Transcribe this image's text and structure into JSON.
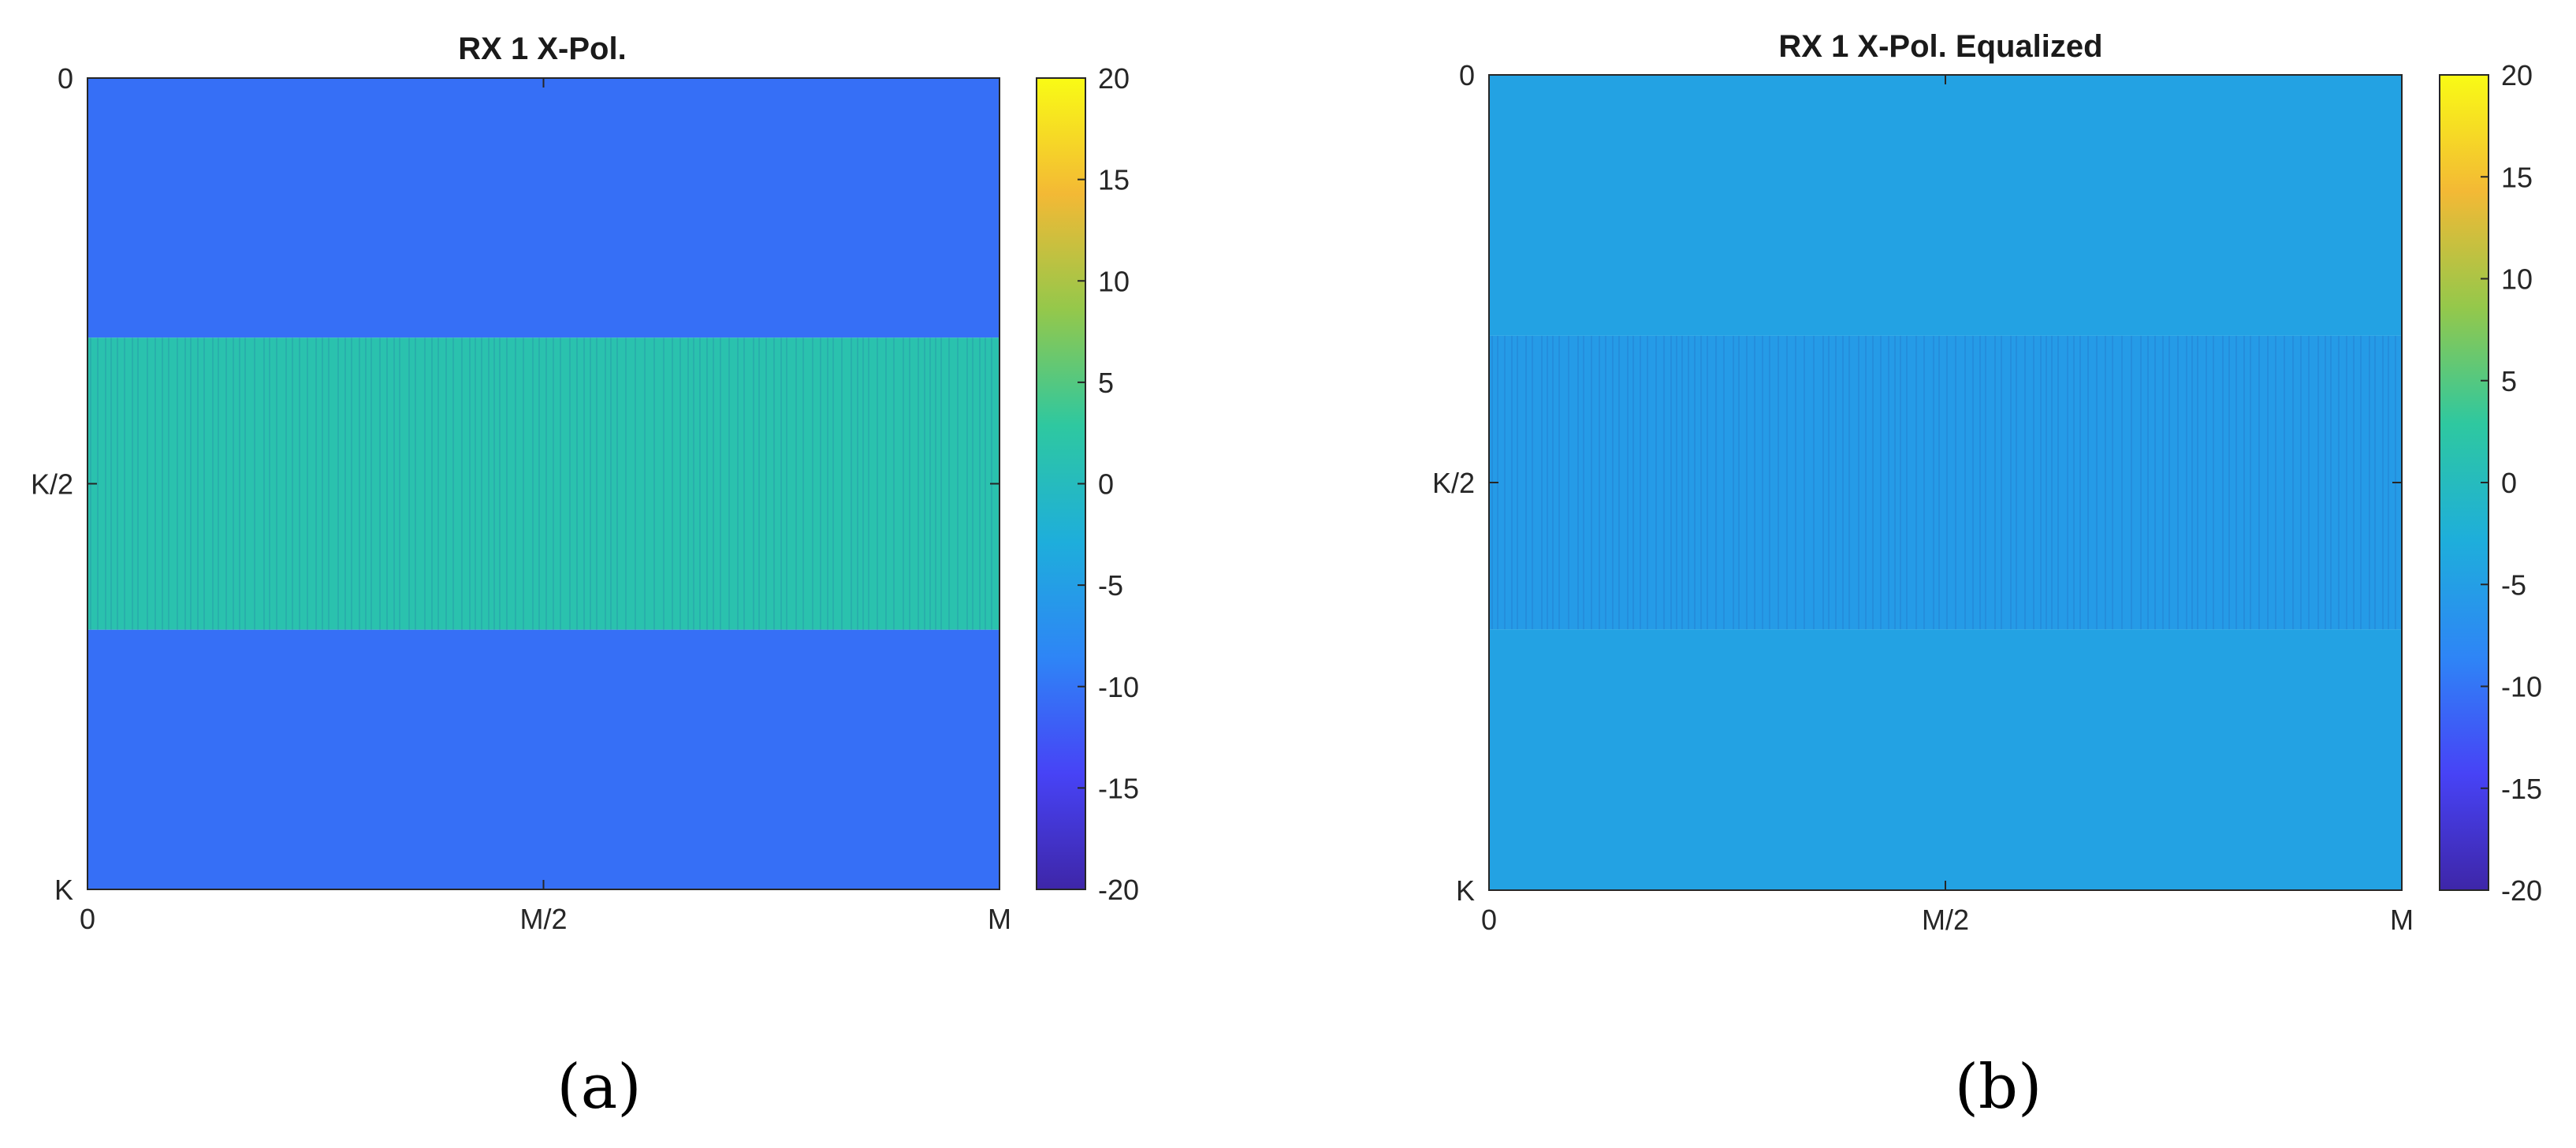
{
  "colormap": [
    "#3e26a8",
    "#4743f6",
    "#2e85f6",
    "#1eaedb",
    "#2ec8a0",
    "#94c84b",
    "#f3b935",
    "#f9fb15"
  ],
  "panels": [
    {
      "caption": "(a)"
    },
    {
      "caption": "(b)"
    }
  ],
  "chart_data": [
    {
      "type": "heatmap",
      "title": "RX 1 X-Pol.",
      "xlabel": "",
      "ylabel": "",
      "x_ticks": [
        "0",
        "M/2",
        "M"
      ],
      "y_ticks": [
        "0",
        "K/2",
        "K"
      ],
      "y_direction": "top-to-bottom",
      "colorbar": {
        "min": -20,
        "max": 20,
        "ticks": [
          20,
          15,
          10,
          5,
          0,
          -5,
          -10,
          -15,
          -20
        ]
      },
      "bands": [
        {
          "y_from": "0",
          "y_to": "0.32K",
          "value": -10.5
        },
        {
          "y_from": "0.32K",
          "y_to": "0.68K",
          "value": 1.5
        },
        {
          "y_from": "0.68K",
          "y_to": "K",
          "value": -10.5
        }
      ],
      "features": "faint vertical striations across the central band"
    },
    {
      "type": "heatmap",
      "title": "RX 1 X-Pol. Equalized",
      "xlabel": "",
      "ylabel": "",
      "x_ticks": [
        "0",
        "M/2",
        "M"
      ],
      "y_ticks": [
        "0",
        "K/2",
        "K"
      ],
      "y_direction": "top-to-bottom",
      "colorbar": {
        "min": -20,
        "max": 20,
        "ticks": [
          20,
          15,
          10,
          5,
          0,
          -5,
          -10,
          -15,
          -20
        ]
      },
      "bands": [
        {
          "y_from": "0",
          "y_to": "0.32K",
          "value": -4.5
        },
        {
          "y_from": "0.32K",
          "y_to": "0.68K",
          "value": -5.5
        },
        {
          "y_from": "0.68K",
          "y_to": "K",
          "value": -4.5
        }
      ],
      "features": "uniform level with faint vertical striations in the central band"
    }
  ]
}
